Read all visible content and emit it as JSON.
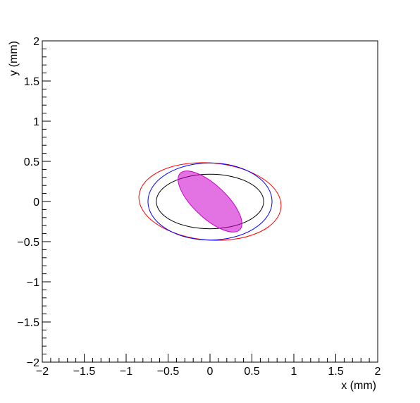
{
  "chart_data": {
    "type": "ellipse",
    "x_label": "x (mm)",
    "y_label": "y (mm)",
    "xlim": [
      -2,
      2
    ],
    "ylim": [
      -2,
      2
    ],
    "xticks": [
      {
        "value": -2,
        "label": "−2"
      },
      {
        "value": -1.5,
        "label": "−1.5"
      },
      {
        "value": -1,
        "label": "−1"
      },
      {
        "value": -0.5,
        "label": "−0.5"
      },
      0,
      0.5,
      1,
      1.5,
      2
    ],
    "yticks": [
      {
        "value": -2,
        "label": "−2"
      },
      {
        "value": -1.5,
        "label": "−1.5"
      },
      {
        "value": -1,
        "label": "−1"
      },
      {
        "value": -0.5,
        "label": "−0.5"
      },
      0,
      0.5,
      1,
      1.5,
      2
    ],
    "ellipses": [
      {
        "cx": 0,
        "cy": 0,
        "rx": 0.85,
        "ry": 0.48,
        "angle": -5,
        "color": "#ff0000",
        "filled": false
      },
      {
        "cx": 0,
        "cy": 0,
        "rx": 0.74,
        "ry": 0.48,
        "angle": 0,
        "color": "#0000ff",
        "filled": false
      },
      {
        "cx": 0,
        "cy": 0,
        "rx": 0.64,
        "ry": 0.34,
        "angle": 0,
        "color": "#000000",
        "filled": false
      },
      {
        "cx": 0,
        "cy": 0,
        "rx": 0.5,
        "ry": 0.2,
        "angle": -45,
        "color": "#cc00cc",
        "filled": true
      }
    ]
  }
}
